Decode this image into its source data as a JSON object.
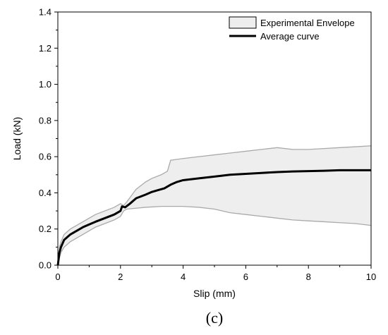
{
  "panel_label": "(c)",
  "chart_data": {
    "type": "line",
    "xlabel": "Slip (mm)",
    "ylabel": "Load (kN)",
    "xlim": [
      0,
      10
    ],
    "ylim": [
      0,
      1.4
    ],
    "xticks": [
      "0",
      "2",
      "4",
      "6",
      "8",
      "10"
    ],
    "yticks": [
      "0.0",
      "0.2",
      "0.4",
      "0.6",
      "0.8",
      "1.0",
      "1.2",
      "1.4"
    ],
    "grid": false,
    "legend_position": "top-right",
    "legend": {
      "envelope_label": "Experimental Envelope",
      "average_label": "Average curve"
    },
    "envelope": {
      "x": [
        0,
        0.05,
        0.1,
        0.2,
        0.4,
        0.6,
        0.8,
        1.0,
        1.2,
        1.5,
        1.8,
        2.0,
        2.1,
        2.2,
        2.5,
        2.8,
        3.0,
        3.3,
        3.5,
        3.6,
        4.0,
        4.5,
        5.0,
        5.5,
        6.0,
        6.5,
        7.0,
        7.5,
        8.0,
        8.5,
        9.0,
        9.5,
        10.0
      ],
      "upper": [
        0,
        0.1,
        0.13,
        0.17,
        0.2,
        0.22,
        0.24,
        0.26,
        0.28,
        0.3,
        0.32,
        0.34,
        0.33,
        0.35,
        0.42,
        0.46,
        0.48,
        0.5,
        0.52,
        0.58,
        0.59,
        0.6,
        0.61,
        0.62,
        0.63,
        0.64,
        0.65,
        0.64,
        0.64,
        0.645,
        0.65,
        0.655,
        0.66
      ],
      "lower": [
        0,
        0.04,
        0.07,
        0.1,
        0.13,
        0.15,
        0.17,
        0.19,
        0.21,
        0.23,
        0.25,
        0.27,
        0.3,
        0.31,
        0.315,
        0.32,
        0.322,
        0.325,
        0.325,
        0.325,
        0.325,
        0.32,
        0.31,
        0.29,
        0.28,
        0.27,
        0.26,
        0.25,
        0.245,
        0.24,
        0.235,
        0.23,
        0.22
      ]
    },
    "series": [
      {
        "name": "Average curve",
        "x": [
          0,
          0.05,
          0.1,
          0.2,
          0.4,
          0.6,
          0.8,
          1.0,
          1.2,
          1.5,
          1.8,
          2.0,
          2.05,
          2.15,
          2.3,
          2.5,
          2.8,
          3.0,
          3.2,
          3.4,
          3.6,
          3.8,
          4.0,
          4.5,
          5.0,
          5.5,
          6.0,
          6.5,
          7.0,
          7.5,
          8.0,
          8.5,
          9.0,
          9.5,
          10.0
        ],
        "y": [
          0,
          0.07,
          0.1,
          0.14,
          0.17,
          0.19,
          0.21,
          0.225,
          0.24,
          0.26,
          0.28,
          0.3,
          0.325,
          0.32,
          0.34,
          0.37,
          0.39,
          0.405,
          0.415,
          0.425,
          0.445,
          0.46,
          0.47,
          0.48,
          0.49,
          0.5,
          0.505,
          0.51,
          0.515,
          0.518,
          0.52,
          0.522,
          0.525,
          0.525,
          0.525
        ]
      }
    ],
    "colors": {
      "envelope_fill": "#eeeeee",
      "envelope_edge": "#aaaaaa",
      "average_line": "#000000",
      "axes": "#000000"
    }
  }
}
